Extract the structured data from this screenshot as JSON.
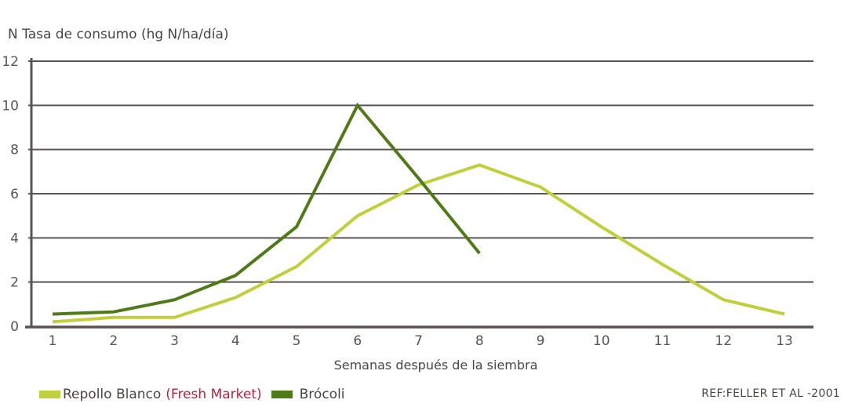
{
  "chart_data": {
    "type": "line",
    "title": "",
    "ylabel": "N Tasa de consumo (hg N/ha/día)",
    "xlabel": "Semanas después de la siembra",
    "x": [
      1,
      2,
      3,
      4,
      5,
      6,
      7,
      8,
      9,
      10,
      11,
      12,
      13
    ],
    "xticks": [
      "1",
      "2",
      "3",
      "4",
      "5",
      "6",
      "7",
      "8",
      "9",
      "10",
      "11",
      "12",
      "13"
    ],
    "yticks": [
      "0",
      "2",
      "4",
      "6",
      "8",
      "10",
      "12"
    ],
    "ylim": [
      0,
      12
    ],
    "grid": true,
    "legend_position": "bottom-left",
    "series": [
      {
        "name": "Repollo Blanco (Fresh Market)",
        "name_main": "Repollo Blanco",
        "name_highlight": "(Fresh Market)",
        "color": "#c2cf3c",
        "x": [
          1,
          2,
          3,
          4,
          5,
          6,
          7,
          8,
          9,
          10,
          11,
          12,
          13
        ],
        "values": [
          0.2,
          0.4,
          0.4,
          1.3,
          2.7,
          5.0,
          6.4,
          7.3,
          6.3,
          4.5,
          2.8,
          1.2,
          0.55
        ]
      },
      {
        "name": "Brócoli",
        "color": "#4f7a18",
        "x": [
          1,
          2,
          3,
          4,
          5,
          6,
          7,
          8
        ],
        "values": [
          0.55,
          0.65,
          1.2,
          2.3,
          4.5,
          10.0,
          6.7,
          3.3
        ]
      }
    ],
    "annotations": [
      "REF:FELLER ET AL -2001"
    ]
  },
  "colors": {
    "axis": "#5a5553",
    "grid": "#5a5553",
    "text": "#4a4543",
    "highlight_text": "#b8243a"
  }
}
